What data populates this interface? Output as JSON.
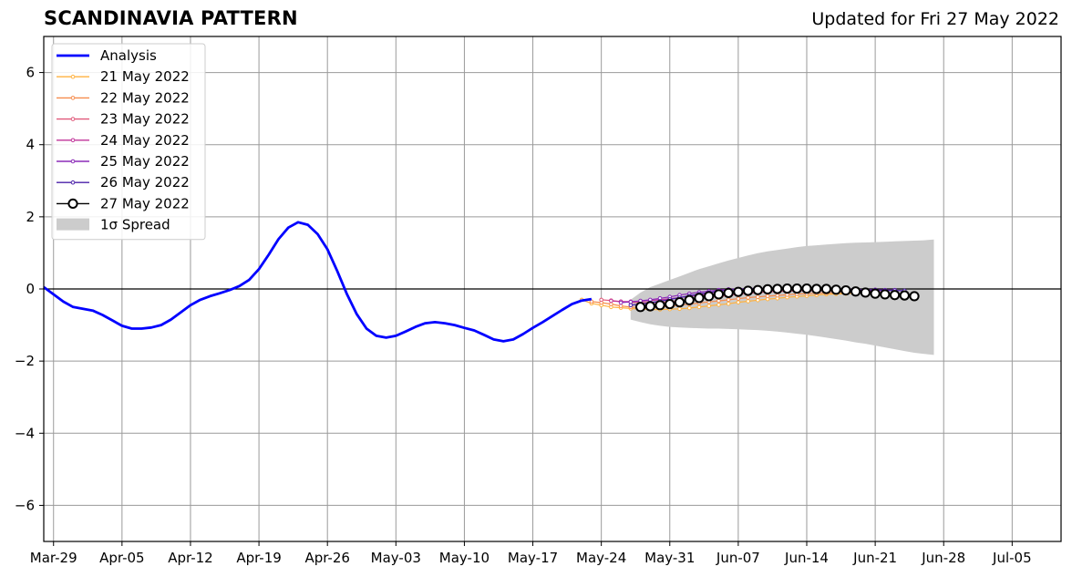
{
  "header": {
    "title": "SCANDINAVIA PATTERN",
    "updated": "Updated for Fri 27 May 2022"
  },
  "colors": {
    "analysis": "#0000ff",
    "spread": "#cccccc",
    "grid": "#9a9a9a",
    "zero_line": "#000000"
  },
  "chart_data": {
    "type": "line",
    "title": "SCANDINAVIA PATTERN",
    "subtitle": "Updated for Fri 27 May 2022",
    "xlabel": "",
    "ylabel": "",
    "x_type": "date",
    "xlim": [
      "2022-03-28",
      "2022-07-10"
    ],
    "ylim": [
      -7,
      7
    ],
    "grid": true,
    "legend_position": "top-left",
    "x_ticks": [
      {
        "date": "2022-03-29",
        "label": "Mar-29"
      },
      {
        "date": "2022-04-05",
        "label": "Apr-05"
      },
      {
        "date": "2022-04-12",
        "label": "Apr-12"
      },
      {
        "date": "2022-04-19",
        "label": "Apr-19"
      },
      {
        "date": "2022-04-26",
        "label": "Apr-26"
      },
      {
        "date": "2022-05-03",
        "label": "May-03"
      },
      {
        "date": "2022-05-10",
        "label": "May-10"
      },
      {
        "date": "2022-05-17",
        "label": "May-17"
      },
      {
        "date": "2022-05-24",
        "label": "May-24"
      },
      {
        "date": "2022-05-31",
        "label": "May-31"
      },
      {
        "date": "2022-06-07",
        "label": "Jun-07"
      },
      {
        "date": "2022-06-14",
        "label": "Jun-14"
      },
      {
        "date": "2022-06-21",
        "label": "Jun-21"
      },
      {
        "date": "2022-06-28",
        "label": "Jun-28"
      },
      {
        "date": "2022-07-05",
        "label": "Jul-05"
      }
    ],
    "y_ticks": [
      {
        "value": 6,
        "label": "6"
      },
      {
        "value": 4,
        "label": "4"
      },
      {
        "value": 2,
        "label": "2"
      },
      {
        "value": 0,
        "label": "0"
      },
      {
        "value": -2,
        "label": "−2"
      },
      {
        "value": -4,
        "label": "−4"
      },
      {
        "value": -6,
        "label": "−6"
      }
    ],
    "analysis": {
      "name": "Analysis",
      "color": "#0000ff",
      "start_date": "2022-03-28",
      "values": [
        0.05,
        -0.15,
        -0.35,
        -0.5,
        -0.55,
        -0.6,
        -0.72,
        -0.87,
        -1.02,
        -1.1,
        -1.1,
        -1.07,
        -1.0,
        -0.85,
        -0.65,
        -0.45,
        -0.3,
        -0.2,
        -0.12,
        -0.03,
        0.08,
        0.25,
        0.55,
        0.95,
        1.38,
        1.7,
        1.85,
        1.78,
        1.52,
        1.1,
        0.5,
        -0.15,
        -0.7,
        -1.1,
        -1.3,
        -1.35,
        -1.3,
        -1.18,
        -1.05,
        -0.95,
        -0.92,
        -0.95,
        -1.0,
        -1.08,
        -1.15,
        -1.27,
        -1.4,
        -1.45,
        -1.4,
        -1.25,
        -1.08,
        -0.92,
        -0.75,
        -0.58,
        -0.42,
        -0.32,
        -0.28
      ]
    },
    "forecasts": [
      {
        "name": "21 May 2022",
        "color": "#ffb23f",
        "start_date": "2022-05-22",
        "values": [
          -0.3,
          -0.4,
          -0.45,
          -0.5,
          -0.52,
          -0.54,
          -0.56,
          -0.57,
          -0.57,
          -0.56,
          -0.55,
          -0.53,
          -0.5,
          -0.47,
          -0.44,
          -0.41,
          -0.37,
          -0.34,
          -0.31,
          -0.28,
          -0.26,
          -0.23,
          -0.21,
          -0.19,
          -0.17,
          -0.15,
          -0.14,
          -0.13,
          -0.12
        ]
      },
      {
        "name": "22 May 2022",
        "color": "#f68c4d",
        "start_date": "2022-05-23",
        "values": [
          -0.35,
          -0.38,
          -0.42,
          -0.47,
          -0.5,
          -0.52,
          -0.52,
          -0.5,
          -0.48,
          -0.45,
          -0.42,
          -0.39,
          -0.36,
          -0.33,
          -0.3,
          -0.27,
          -0.24,
          -0.22,
          -0.2,
          -0.18,
          -0.16,
          -0.14,
          -0.13,
          -0.12,
          -0.11,
          -0.1,
          -0.09,
          -0.08,
          -0.08
        ]
      },
      {
        "name": "23 May 2022",
        "color": "#e0587a",
        "start_date": "2022-05-24",
        "values": [
          -0.3,
          -0.32,
          -0.35,
          -0.37,
          -0.38,
          -0.38,
          -0.37,
          -0.35,
          -0.33,
          -0.3,
          -0.27,
          -0.24,
          -0.21,
          -0.18,
          -0.15,
          -0.12,
          -0.1,
          -0.08,
          -0.07,
          -0.06,
          -0.05,
          -0.05,
          -0.05,
          -0.05,
          -0.05,
          -0.05,
          -0.05,
          -0.06,
          -0.06
        ]
      },
      {
        "name": "24 May 2022",
        "color": "#c1339a",
        "start_date": "2022-05-25",
        "values": [
          -0.33,
          -0.35,
          -0.35,
          -0.34,
          -0.32,
          -0.3,
          -0.27,
          -0.24,
          -0.2,
          -0.17,
          -0.14,
          -0.11,
          -0.09,
          -0.07,
          -0.05,
          -0.04,
          -0.03,
          -0.02,
          -0.02,
          -0.02,
          -0.02,
          -0.02,
          -0.02,
          -0.03,
          -0.03,
          -0.03,
          -0.04,
          -0.04,
          -0.05
        ]
      },
      {
        "name": "25 May 2022",
        "color": "#8b2bb8",
        "start_date": "2022-05-26",
        "values": [
          -0.38,
          -0.36,
          -0.33,
          -0.3,
          -0.26,
          -0.22,
          -0.17,
          -0.13,
          -0.09,
          -0.06,
          -0.03,
          -0.01,
          0.0,
          0.01,
          0.02,
          0.02,
          0.02,
          0.02,
          0.02,
          0.01,
          0.01,
          0.0,
          0.0,
          -0.01,
          -0.01,
          -0.02,
          -0.02,
          -0.03,
          -0.03
        ]
      },
      {
        "name": "26 May 2022",
        "color": "#4a1fa8",
        "start_date": "2022-05-27",
        "values": [
          -0.45,
          -0.42,
          -0.38,
          -0.34,
          -0.29,
          -0.24,
          -0.19,
          -0.14,
          -0.1,
          -0.06,
          -0.03,
          -0.01,
          0.0,
          0.01,
          0.01,
          0.01,
          0.01,
          0.01,
          0.0,
          0.0,
          -0.01,
          -0.01,
          -0.02,
          -0.02,
          -0.03,
          -0.03,
          -0.04,
          -0.04,
          -0.05
        ]
      },
      {
        "name": "27 May 2022",
        "color": "#000000",
        "marker": "open-circle",
        "start_date": "2022-05-28",
        "values": [
          -0.5,
          -0.48,
          -0.45,
          -0.42,
          -0.37,
          -0.31,
          -0.25,
          -0.2,
          -0.15,
          -0.11,
          -0.08,
          -0.05,
          -0.03,
          -0.01,
          0.0,
          0.01,
          0.01,
          0.01,
          0.0,
          0.0,
          -0.02,
          -0.04,
          -0.07,
          -0.1,
          -0.13,
          -0.15,
          -0.17,
          -0.18,
          -0.2
        ]
      }
    ],
    "spread": {
      "name": "1σ Spread",
      "color": "#cccccc",
      "start_date": "2022-05-27",
      "upper": [
        -0.3,
        -0.1,
        0.05,
        0.15,
        0.25,
        0.35,
        0.45,
        0.55,
        0.63,
        0.71,
        0.79,
        0.86,
        0.93,
        0.99,
        1.04,
        1.08,
        1.12,
        1.16,
        1.19,
        1.21,
        1.23,
        1.25,
        1.27,
        1.28,
        1.29,
        1.3,
        1.31,
        1.32,
        1.33,
        1.34,
        1.35,
        1.37
      ],
      "lower": [
        -0.85,
        -0.92,
        -0.98,
        -1.02,
        -1.05,
        -1.07,
        -1.08,
        -1.09,
        -1.1,
        -1.1,
        -1.11,
        -1.12,
        -1.13,
        -1.14,
        -1.16,
        -1.18,
        -1.21,
        -1.24,
        -1.27,
        -1.31,
        -1.35,
        -1.39,
        -1.43,
        -1.48,
        -1.52,
        -1.57,
        -1.62,
        -1.67,
        -1.72,
        -1.77,
        -1.8,
        -1.83
      ]
    }
  }
}
